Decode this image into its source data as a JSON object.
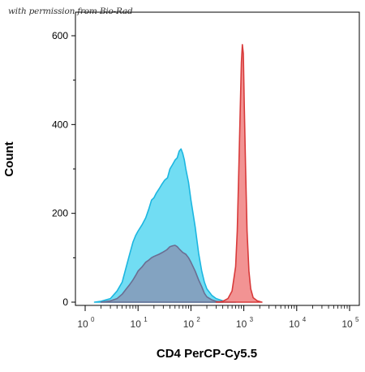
{
  "credit": "with permission from Bio-Rad",
  "chart_data": {
    "type": "area",
    "title": "",
    "xlabel": "CD4 PerCP-Cy5.5",
    "ylabel": "Count",
    "x_scale": "log",
    "xlim": [
      1,
      100000
    ],
    "ylim": [
      0,
      660
    ],
    "x_ticks": [
      {
        "base": "10",
        "exp": "0",
        "value": 1
      },
      {
        "base": "10",
        "exp": "1",
        "value": 10
      },
      {
        "base": "10",
        "exp": "2",
        "value": 100
      },
      {
        "base": "10",
        "exp": "3",
        "value": 1000
      },
      {
        "base": "10",
        "exp": "4",
        "value": 10000
      },
      {
        "base": "10",
        "exp": "5",
        "value": 100000
      }
    ],
    "y_ticks": [
      {
        "label": "0",
        "value": 0
      },
      {
        "label": "200",
        "value": 200
      },
      {
        "label": "400",
        "value": 400
      },
      {
        "label": "600",
        "value": 600
      }
    ],
    "grid": false,
    "series": [
      {
        "color": "#4dd4f0",
        "stroke": "#1cb6e0",
        "opacity": 0.8,
        "points": [
          [
            1.5,
            0
          ],
          [
            2,
            2
          ],
          [
            3,
            8
          ],
          [
            4,
            25
          ],
          [
            5,
            45
          ],
          [
            6,
            80
          ],
          [
            7,
            110
          ],
          [
            8,
            135
          ],
          [
            9,
            150
          ],
          [
            10,
            160
          ],
          [
            12,
            175
          ],
          [
            14,
            190
          ],
          [
            16,
            210
          ],
          [
            18,
            230
          ],
          [
            20,
            235
          ],
          [
            22,
            245
          ],
          [
            25,
            255
          ],
          [
            28,
            265
          ],
          [
            32,
            275
          ],
          [
            36,
            280
          ],
          [
            40,
            300
          ],
          [
            45,
            310
          ],
          [
            50,
            320
          ],
          [
            55,
            325
          ],
          [
            60,
            340
          ],
          [
            65,
            345
          ],
          [
            70,
            335
          ],
          [
            75,
            320
          ],
          [
            80,
            300
          ],
          [
            90,
            270
          ],
          [
            100,
            230
          ],
          [
            120,
            170
          ],
          [
            140,
            110
          ],
          [
            160,
            70
          ],
          [
            180,
            45
          ],
          [
            200,
            30
          ],
          [
            250,
            15
          ],
          [
            300,
            8
          ],
          [
            400,
            3
          ],
          [
            500,
            1
          ],
          [
            700,
            0
          ]
        ]
      },
      {
        "color": "#8a8fb0",
        "stroke": "#6a6e92",
        "opacity": 0.75,
        "points": [
          [
            2,
            0
          ],
          [
            3,
            3
          ],
          [
            4,
            8
          ],
          [
            5,
            18
          ],
          [
            6,
            30
          ],
          [
            7,
            40
          ],
          [
            8,
            50
          ],
          [
            9,
            60
          ],
          [
            10,
            70
          ],
          [
            12,
            80
          ],
          [
            14,
            90
          ],
          [
            16,
            95
          ],
          [
            18,
            100
          ],
          [
            20,
            103
          ],
          [
            25,
            108
          ],
          [
            30,
            113
          ],
          [
            35,
            118
          ],
          [
            40,
            125
          ],
          [
            45,
            127
          ],
          [
            50,
            128
          ],
          [
            55,
            125
          ],
          [
            60,
            120
          ],
          [
            70,
            112
          ],
          [
            80,
            108
          ],
          [
            90,
            100
          ],
          [
            100,
            90
          ],
          [
            120,
            70
          ],
          [
            140,
            50
          ],
          [
            160,
            35
          ],
          [
            180,
            20
          ],
          [
            200,
            12
          ],
          [
            250,
            5
          ],
          [
            300,
            2
          ],
          [
            400,
            0
          ]
        ]
      },
      {
        "color": "#f08080",
        "stroke": "#d83a3a",
        "opacity": 0.85,
        "points": [
          [
            300,
            0
          ],
          [
            400,
            2
          ],
          [
            500,
            8
          ],
          [
            600,
            25
          ],
          [
            700,
            80
          ],
          [
            750,
            160
          ],
          [
            800,
            290
          ],
          [
            850,
            420
          ],
          [
            900,
            540
          ],
          [
            940,
            580
          ],
          [
            980,
            560
          ],
          [
            1020,
            440
          ],
          [
            1080,
            300
          ],
          [
            1150,
            160
          ],
          [
            1250,
            70
          ],
          [
            1350,
            30
          ],
          [
            1500,
            10
          ],
          [
            1800,
            3
          ],
          [
            2200,
            0
          ]
        ]
      }
    ]
  }
}
